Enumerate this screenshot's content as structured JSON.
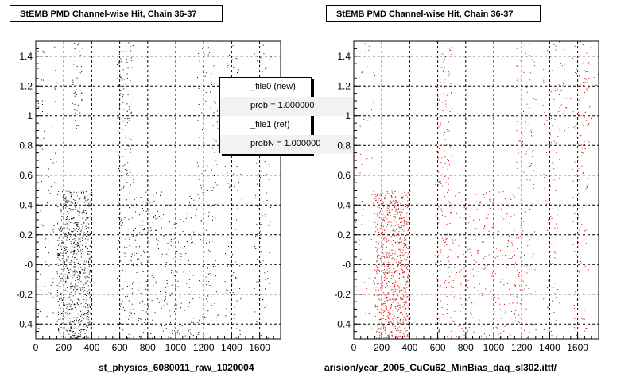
{
  "chart_data": [
    {
      "type": "scatter",
      "title": "StEMB PMD Channel-wise Hit, Chain 36-37",
      "xlabel": "st_physics_6080011_raw_1020004",
      "ylabel": "",
      "xlim": [
        0,
        1750
      ],
      "ylim": [
        -0.5,
        1.5
      ],
      "xticks": [
        0,
        200,
        400,
        600,
        800,
        1000,
        1200,
        1400,
        1600
      ],
      "yticks": [
        -0.4,
        -0.2,
        -0.0,
        0.2,
        0.4,
        0.6,
        0.8,
        1.0,
        1.2,
        1.4
      ],
      "ytick_labels": [
        "-0.4",
        "-0.2",
        "-0",
        "0.2",
        "0.4",
        "0.6",
        "0.8",
        "1",
        "1.2",
        "1.4"
      ],
      "grid": true,
      "marker_color": "#000000",
      "legend": {
        "placement": "top-right",
        "entries": [
          {
            "label": "_file0 (new)",
            "color": "#000000"
          },
          {
            "label": "prob = 1.000000",
            "color": "#000000"
          },
          {
            "label": "_file1 (ref)",
            "color": "#cc0000"
          },
          {
            "label": "probN = 1.000000",
            "color": "#cc0000"
          }
        ]
      },
      "clusters": [
        {
          "x": [
            150,
            400
          ],
          "y": [
            -0.5,
            0.5
          ],
          "n": 900
        },
        {
          "x": [
            0,
            150
          ],
          "y": [
            -0.5,
            1.5
          ],
          "n": 80
        },
        {
          "x": [
            580,
            700
          ],
          "y": [
            -0.5,
            1.5
          ],
          "n": 220
        },
        {
          "x": [
            700,
            1150
          ],
          "y": [
            -0.5,
            0.5
          ],
          "n": 280
        },
        {
          "x": [
            1150,
            1300
          ],
          "y": [
            -0.5,
            1.5
          ],
          "n": 150
        },
        {
          "x": [
            1350,
            1470
          ],
          "y": [
            -0.5,
            1.5
          ],
          "n": 120
        },
        {
          "x": [
            1560,
            1680
          ],
          "y": [
            -0.5,
            1.5
          ],
          "n": 130
        },
        {
          "x": [
            250,
            330
          ],
          "y": [
            0.9,
            1.5
          ],
          "n": 50
        }
      ]
    },
    {
      "type": "scatter",
      "title": "StEMB PMD Channel-wise Hit, Chain 36-37",
      "xlabel": "arision/year_2005_CuCu62_MinBias_daq_sl302.ittf/",
      "ylabel": "",
      "xlim": [
        0,
        1750
      ],
      "ylim": [
        -0.5,
        1.5
      ],
      "xticks": [
        0,
        200,
        400,
        600,
        800,
        1000,
        1200,
        1400,
        1600
      ],
      "yticks": [
        -0.4,
        -0.2,
        -0.0,
        0.2,
        0.4,
        0.6,
        0.8,
        1.0,
        1.2,
        1.4
      ],
      "ytick_labels": [
        "-0.4",
        "-0.2",
        "-0",
        "0.2",
        "0.4",
        "0.6",
        "0.8",
        "1",
        "1.2",
        "1.4"
      ],
      "grid": true,
      "marker_color": "#cc0000",
      "clusters": [
        {
          "x": [
            150,
            400
          ],
          "y": [
            -0.5,
            0.5
          ],
          "n": 900
        },
        {
          "x": [
            0,
            150
          ],
          "y": [
            -0.5,
            1.5
          ],
          "n": 80
        },
        {
          "x": [
            580,
            700
          ],
          "y": [
            -0.5,
            1.5
          ],
          "n": 220
        },
        {
          "x": [
            700,
            1150
          ],
          "y": [
            -0.5,
            0.5
          ],
          "n": 280
        },
        {
          "x": [
            1150,
            1300
          ],
          "y": [
            -0.5,
            1.5
          ],
          "n": 150
        },
        {
          "x": [
            1350,
            1470
          ],
          "y": [
            -0.5,
            1.5
          ],
          "n": 120
        },
        {
          "x": [
            1560,
            1680
          ],
          "y": [
            -0.5,
            1.5
          ],
          "n": 130
        },
        {
          "x": [
            1450,
            1750
          ],
          "y": [
            0.9,
            1.5
          ],
          "n": 60
        }
      ]
    }
  ]
}
